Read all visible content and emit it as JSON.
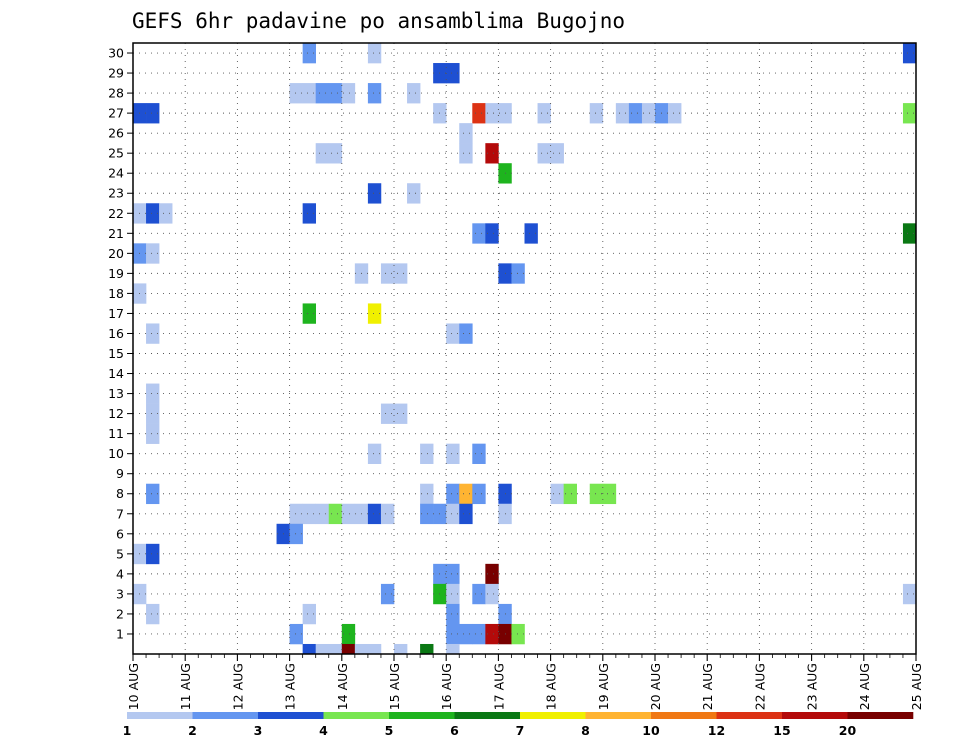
{
  "chart_data": {
    "type": "heatmap",
    "title": "GEFS 6hr padavine po ansamblima Bugojno",
    "xlabel": "",
    "ylabel": "",
    "x_tick_labels": [
      "10 AUG",
      "11 AUG",
      "12 AUG",
      "13 AUG",
      "14 AUG",
      "15 AUG",
      "16 AUG",
      "17 AUG",
      "18 AUG",
      "19 AUG",
      "20 AUG",
      "21 AUG",
      "22 AUG",
      "23 AUG",
      "24 AUG",
      "25 AUG"
    ],
    "x_range_steps": [
      0,
      60
    ],
    "steps_per_day": 4,
    "y_tick_labels": [
      "1",
      "2",
      "3",
      "4",
      "5",
      "6",
      "7",
      "8",
      "9",
      "10",
      "11",
      "12",
      "13",
      "14",
      "15",
      "16",
      "17",
      "18",
      "19",
      "20",
      "21",
      "22",
      "23",
      "24",
      "25",
      "26",
      "27",
      "28",
      "29",
      "30"
    ],
    "y_range_members": [
      0,
      30
    ],
    "grid": "dotted",
    "legend": {
      "placement": "bottom",
      "thresholds": [
        "1",
        "2",
        "3",
        "4",
        "5",
        "6",
        "7",
        "8",
        "10",
        "12",
        "15",
        "20"
      ],
      "colors": [
        "#b4c8f0",
        "#6496f0",
        "#1e50d2",
        "#78e650",
        "#1eb41e",
        "#0a7814",
        "#f0f000",
        "#ffb432",
        "#f07814",
        "#dc3214",
        "#b40a0a",
        "#780000"
      ]
    },
    "cells": [
      [
        30,
        13,
        1
      ],
      [
        30,
        18,
        0
      ],
      [
        30,
        59,
        2
      ],
      [
        29,
        23,
        2
      ],
      [
        29,
        24,
        2
      ],
      [
        28,
        12,
        0
      ],
      [
        28,
        13,
        0
      ],
      [
        28,
        14,
        1
      ],
      [
        28,
        15,
        1
      ],
      [
        28,
        16,
        0
      ],
      [
        28,
        18,
        1
      ],
      [
        28,
        21,
        0
      ],
      [
        27,
        0,
        2
      ],
      [
        27,
        1,
        2
      ],
      [
        27,
        23,
        0
      ],
      [
        27,
        26,
        9
      ],
      [
        27,
        27,
        0
      ],
      [
        27,
        28,
        0
      ],
      [
        27,
        31,
        0
      ],
      [
        27,
        35,
        0
      ],
      [
        27,
        37,
        0
      ],
      [
        27,
        38,
        1
      ],
      [
        27,
        39,
        0
      ],
      [
        27,
        40,
        1
      ],
      [
        27,
        41,
        0
      ],
      [
        27,
        59,
        3
      ],
      [
        26,
        25,
        0
      ],
      [
        25,
        14,
        0
      ],
      [
        25,
        15,
        0
      ],
      [
        25,
        25,
        0
      ],
      [
        25,
        27,
        10
      ],
      [
        25,
        31,
        0
      ],
      [
        25,
        32,
        0
      ],
      [
        24,
        28,
        4
      ],
      [
        23,
        18,
        2
      ],
      [
        23,
        21,
        0
      ],
      [
        22,
        0,
        0
      ],
      [
        22,
        1,
        2
      ],
      [
        22,
        2,
        0
      ],
      [
        22,
        13,
        2
      ],
      [
        21,
        26,
        1
      ],
      [
        21,
        27,
        2
      ],
      [
        21,
        30,
        2
      ],
      [
        21,
        59,
        5
      ],
      [
        20,
        0,
        1
      ],
      [
        20,
        1,
        0
      ],
      [
        19,
        17,
        0
      ],
      [
        19,
        19,
        0
      ],
      [
        19,
        20,
        0
      ],
      [
        19,
        28,
        2
      ],
      [
        19,
        29,
        1
      ],
      [
        18,
        0,
        0
      ],
      [
        17,
        13,
        4
      ],
      [
        17,
        18,
        6
      ],
      [
        16,
        1,
        0
      ],
      [
        16,
        24,
        0
      ],
      [
        16,
        25,
        1
      ],
      [
        13,
        1,
        0
      ],
      [
        12,
        1,
        0
      ],
      [
        12,
        19,
        0
      ],
      [
        12,
        20,
        0
      ],
      [
        11,
        1,
        0
      ],
      [
        10,
        18,
        0
      ],
      [
        10,
        22,
        0
      ],
      [
        10,
        24,
        0
      ],
      [
        10,
        26,
        1
      ],
      [
        8,
        1,
        1
      ],
      [
        8,
        22,
        0
      ],
      [
        8,
        24,
        1
      ],
      [
        8,
        25,
        7
      ],
      [
        8,
        26,
        1
      ],
      [
        8,
        28,
        2
      ],
      [
        8,
        32,
        0
      ],
      [
        8,
        33,
        3
      ],
      [
        8,
        35,
        3
      ],
      [
        8,
        36,
        3
      ],
      [
        7,
        12,
        0
      ],
      [
        7,
        13,
        0
      ],
      [
        7,
        14,
        0
      ],
      [
        7,
        15,
        3
      ],
      [
        7,
        16,
        0
      ],
      [
        7,
        17,
        0
      ],
      [
        7,
        18,
        2
      ],
      [
        7,
        19,
        0
      ],
      [
        7,
        22,
        1
      ],
      [
        7,
        23,
        1
      ],
      [
        7,
        24,
        0
      ],
      [
        7,
        25,
        2
      ],
      [
        7,
        28,
        0
      ],
      [
        6,
        11,
        2
      ],
      [
        6,
        12,
        1
      ],
      [
        5,
        0,
        0
      ],
      [
        5,
        1,
        2
      ],
      [
        4,
        23,
        1
      ],
      [
        4,
        24,
        1
      ],
      [
        4,
        27,
        11
      ],
      [
        3,
        0,
        0
      ],
      [
        3,
        19,
        1
      ],
      [
        3,
        23,
        4
      ],
      [
        3,
        24,
        0
      ],
      [
        3,
        26,
        1
      ],
      [
        3,
        27,
        0
      ],
      [
        3,
        59,
        0
      ],
      [
        2,
        1,
        0
      ],
      [
        2,
        13,
        0
      ],
      [
        2,
        24,
        1
      ],
      [
        2,
        28,
        1
      ],
      [
        1,
        12,
        1
      ],
      [
        1,
        16,
        4
      ],
      [
        1,
        24,
        1
      ],
      [
        1,
        25,
        1
      ],
      [
        1,
        26,
        1
      ],
      [
        1,
        27,
        10
      ],
      [
        1,
        28,
        11
      ],
      [
        1,
        29,
        3
      ],
      [
        0,
        13,
        2
      ],
      [
        0,
        14,
        0
      ],
      [
        0,
        15,
        0
      ],
      [
        0,
        16,
        11
      ],
      [
        0,
        17,
        0
      ],
      [
        0,
        18,
        0
      ],
      [
        0,
        20,
        0
      ],
      [
        0,
        22,
        5
      ],
      [
        0,
        24,
        0
      ]
    ]
  }
}
